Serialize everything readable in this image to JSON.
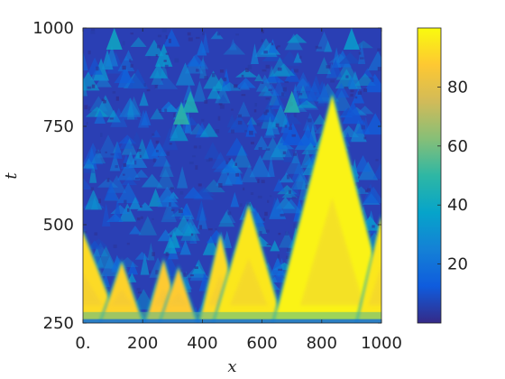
{
  "chart_data": {
    "type": "heatmap",
    "title": "",
    "xlabel": "x",
    "ylabel": "t",
    "xlim": [
      0,
      1000
    ],
    "ylim": [
      250,
      1000
    ],
    "x_ticks": [
      {
        "value": 0,
        "label": "0."
      },
      {
        "value": 200,
        "label": "200"
      },
      {
        "value": 400,
        "label": "400"
      },
      {
        "value": 600,
        "label": "600"
      },
      {
        "value": 800,
        "label": "800"
      },
      {
        "value": 1000,
        "label": "1000"
      }
    ],
    "y_ticks": [
      {
        "value": 250,
        "label": "250"
      },
      {
        "value": 500,
        "label": "500"
      },
      {
        "value": 750,
        "label": "750"
      },
      {
        "value": 1000,
        "label": "1000"
      }
    ],
    "colorbar": {
      "range": [
        0,
        100
      ],
      "ticks": [
        {
          "value": 20,
          "label": "20"
        },
        {
          "value": 40,
          "label": "40"
        },
        {
          "value": 60,
          "label": "60"
        },
        {
          "value": 80,
          "label": "80"
        }
      ],
      "colormap": "parula",
      "colors": [
        "#352a87",
        "#0f5cdd",
        "#1481d6",
        "#06a4ca",
        "#2eb7a4",
        "#87bf77",
        "#d1bb59",
        "#fec832",
        "#f9fb0e"
      ]
    },
    "background_level": 5,
    "triangles": [
      {
        "x_center": 0,
        "t_apex": 480,
        "base_left": -230,
        "base_right": 120,
        "value": 92
      },
      {
        "x_center": 130,
        "t_apex": 405,
        "base_left": 60,
        "base_right": 200,
        "value": 90
      },
      {
        "x_center": 270,
        "t_apex": 410,
        "base_left": 210,
        "base_right": 330,
        "value": 88
      },
      {
        "x_center": 320,
        "t_apex": 390,
        "base_left": 260,
        "base_right": 380,
        "value": 88
      },
      {
        "x_center": 460,
        "t_apex": 475,
        "base_left": 390,
        "base_right": 530,
        "value": 92
      },
      {
        "x_center": 555,
        "t_apex": 550,
        "base_left": 440,
        "base_right": 670,
        "value": 95
      },
      {
        "x_center": 835,
        "t_apex": 830,
        "base_left": 640,
        "base_right": 1030,
        "value": 98
      },
      {
        "x_center": 1000,
        "t_apex": 520,
        "base_left": 920,
        "base_right": 1100,
        "value": 95
      }
    ],
    "small_peaks": [
      {
        "x": 105,
        "t": 1000,
        "value": 40
      },
      {
        "x": 330,
        "t": 810,
        "value": 50
      },
      {
        "x": 360,
        "t": 840,
        "value": 45
      },
      {
        "x": 700,
        "t": 840,
        "value": 48
      },
      {
        "x": 900,
        "t": 1000,
        "value": 35
      }
    ]
  }
}
